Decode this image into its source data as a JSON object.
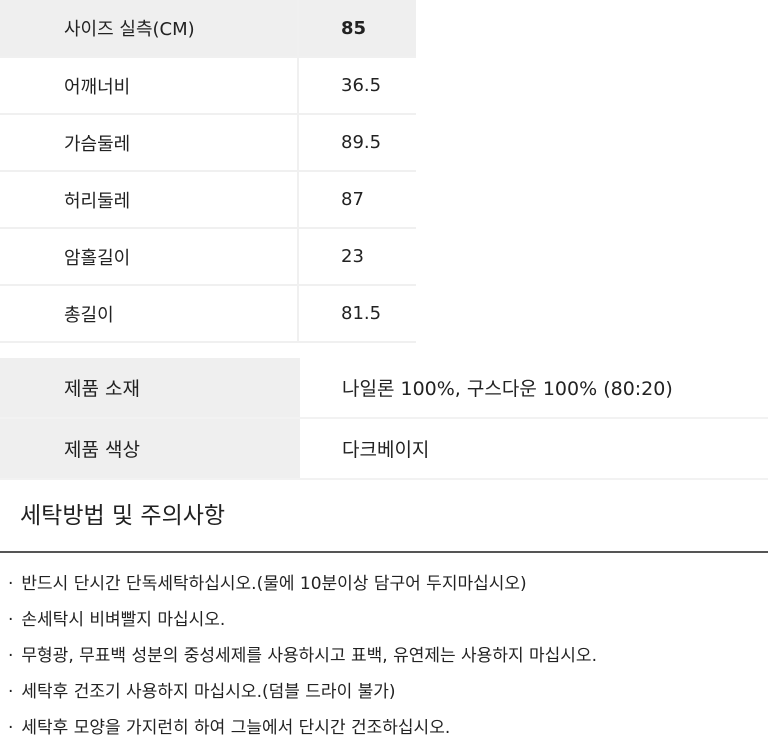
{
  "size_table": {
    "header": {
      "label": "사이즈 실측(CM)",
      "value": "85"
    },
    "rows": [
      {
        "label": "어깨너비",
        "value": "36.5"
      },
      {
        "label": "가슴둘레",
        "value": "89.5"
      },
      {
        "label": "허리둘레",
        "value": "87"
      },
      {
        "label": "암홀길이",
        "value": "23"
      },
      {
        "label": "총길이",
        "value": "81.5"
      }
    ]
  },
  "product_info": [
    {
      "label": "제품 소재",
      "value": "나일론 100%, 구스다운 100% (80:20)"
    },
    {
      "label": "제품 색상",
      "value": "다크베이지"
    }
  ],
  "care": {
    "title": "세탁방법 및 주의사항",
    "items": [
      "반드시 단시간 단독세탁하십시오.(물에 10분이상 담구어 두지마십시오)",
      "손세탁시 비벼빨지 마십시오.",
      "무형광, 무표백 성분의 중성세제를 사용하시고 표백, 유연제는 사용하지 마십시오.",
      "세탁후 건조기 사용하지 마십시오.(덤블 드라이 불가)",
      "세탁후 모양을 가지런히 하여 그늘에서 단시간 건조하십시오."
    ]
  }
}
